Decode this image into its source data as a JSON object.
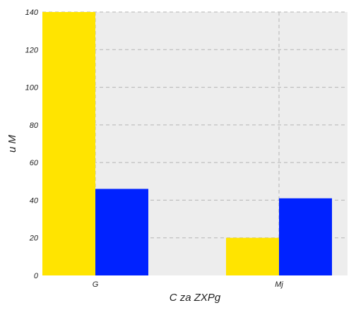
{
  "chart_data": {
    "type": "bar",
    "title": "",
    "xlabel": "C za ZXPg",
    "ylabel": "u M",
    "categories": [
      "G",
      "Mj"
    ],
    "series": [
      {
        "color": "#FFE400",
        "values": [
          140,
          20
        ]
      },
      {
        "color": "#0022FF",
        "values": [
          46,
          41
        ]
      }
    ],
    "ylim": [
      0,
      140
    ],
    "yticks": [
      0,
      20,
      40,
      60,
      80,
      100,
      120,
      140
    ],
    "grid": true,
    "legend": "none",
    "background_color": "#EDEDED"
  }
}
